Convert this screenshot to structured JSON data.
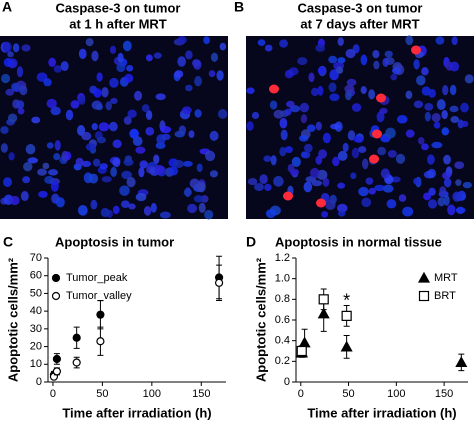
{
  "images": [
    {
      "label": "A",
      "title": [
        "Caspase-3 on tumor",
        "at 1 h after MRT"
      ]
    },
    {
      "label": "B",
      "title": [
        "Caspase-3 on tumor",
        "at 7 days after MRT"
      ]
    }
  ],
  "chart_data": [
    {
      "type": "scatter",
      "label": "C",
      "title": "Apoptosis in tumor",
      "x_label": "Time after irradiation (h)",
      "y_label": "Apoptotic cells/mm²",
      "xlim": [
        -5,
        175
      ],
      "xticks": [
        0,
        50,
        100,
        150
      ],
      "ylim": [
        0,
        70
      ],
      "yticks": [
        0,
        10,
        20,
        30,
        40,
        50,
        60,
        70
      ],
      "legend": "upper left",
      "series": [
        {
          "name": "Tumor_peak",
          "marker": "circle",
          "filled": true,
          "color": "#000000",
          "x": [
            1,
            4,
            24,
            48,
            168
          ],
          "values": [
            4,
            13,
            25,
            38,
            59
          ],
          "errors": [
            2,
            3,
            6,
            8,
            12
          ]
        },
        {
          "name": "Tumor_valley",
          "marker": "circle",
          "filled": false,
          "color": "#000000",
          "x": [
            1,
            4,
            24,
            48,
            168
          ],
          "values": [
            3,
            6,
            11,
            23,
            56
          ],
          "errors": [
            1,
            2,
            3,
            8,
            10
          ]
        }
      ]
    },
    {
      "type": "scatter",
      "label": "D",
      "title": "Apoptosis in normal tissue",
      "x_label": "Time after irradiation (h)",
      "y_label": "Apoptotic cells/mm²",
      "xlim": [
        -5,
        175
      ],
      "xticks": [
        0,
        50,
        100,
        150
      ],
      "ylim": [
        0,
        1.2
      ],
      "yticks": [
        0,
        0.2,
        0.4,
        0.6,
        0.8,
        {
          "value": 1,
          "label": "1.0"
        },
        1.2
      ],
      "legend": "upper right",
      "annotations": [
        {
          "text": "*",
          "x": 48
        }
      ],
      "series": [
        {
          "name": "MRT",
          "marker": "triangle",
          "filled": true,
          "color": "#000000",
          "x": [
            1,
            4,
            24,
            48,
            168
          ],
          "values": [
            0.28,
            0.38,
            0.66,
            0.34,
            0.19
          ],
          "errors": [
            0.04,
            0.13,
            0.17,
            0.11,
            0.08
          ]
        },
        {
          "name": "BRT",
          "marker": "square",
          "filled": false,
          "color": "#000000",
          "x": [
            1,
            24,
            48
          ],
          "values": [
            0.3,
            0.8,
            0.64
          ],
          "errors": [
            0.05,
            0.1,
            0.1
          ]
        }
      ]
    }
  ]
}
